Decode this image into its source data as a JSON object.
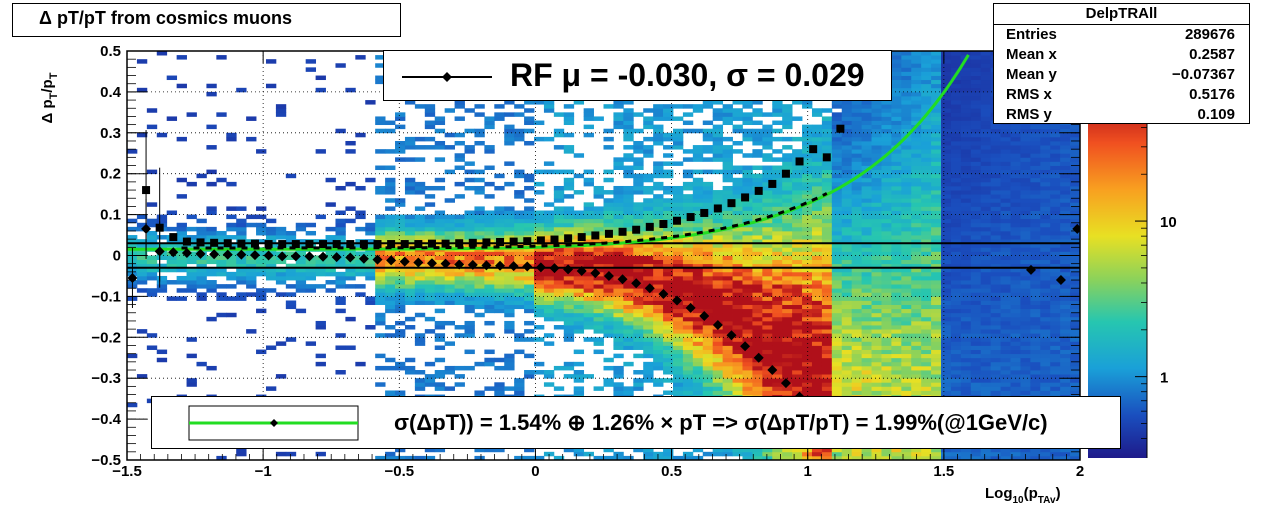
{
  "title": "Δ p_T/p_T from cosmics muons",
  "title_text": "Δ pT/pT from cosmics muons",
  "stats": {
    "name": "DelpTRAll",
    "rows": [
      {
        "label": "Entries",
        "value": "289676"
      },
      {
        "label": "Mean x",
        "value": "0.2587"
      },
      {
        "label": "Mean y",
        "value": "−0.07367"
      },
      {
        "label": "RMS x",
        "value": "0.5176"
      },
      {
        "label": "RMS y",
        "value": "0.109"
      }
    ]
  },
  "legend_top": {
    "text": "RF μ = -0.030, σ =   0.029"
  },
  "legend_bottom": {
    "text": "σ(ΔpT)) =  1.54% ⊕  1.26% × pT => σ(ΔpT/pT) =  1.99%(@1GeV/c)"
  },
  "colors": {
    "fit": "#22dd22",
    "markers": "#000000"
  },
  "chart_data": {
    "type": "heatmap",
    "xlabel": "Log10(pTAv)",
    "ylabel": "Δ pT/pT",
    "xlim": [
      -1.5,
      2.0
    ],
    "ylim": [
      -0.5,
      0.5
    ],
    "x_ticks": [
      "−1.5",
      "−1",
      "−0.5",
      "0",
      "0.5",
      "1",
      "1.5",
      "2"
    ],
    "x_tick_values": [
      -1.5,
      -1,
      -0.5,
      0,
      0.5,
      1,
      1.5,
      2
    ],
    "y_ticks": [
      "−0.5",
      "−0.4",
      "−0.3",
      "−0.2",
      "−0.1",
      "0",
      "0.1",
      "0.2",
      "0.3",
      "0.4",
      "0.5"
    ],
    "y_tick_values": [
      -0.5,
      -0.4,
      -0.3,
      -0.2,
      -0.1,
      0,
      0.1,
      0.2,
      0.3,
      0.4,
      0.5
    ],
    "z_scale": "log",
    "z_ticks": [
      "1",
      "10"
    ],
    "z_tick_values": [
      1,
      10
    ],
    "zlim": [
      0.3,
      60
    ],
    "grid": true,
    "hlines": [
      0.03,
      -0.03
    ],
    "mean_points": {
      "x": [
        -1.48,
        -1.43,
        -1.38,
        -1.33,
        -1.28,
        -1.23,
        -1.18,
        -1.13,
        -1.08,
        -1.03,
        -0.98,
        -0.93,
        -0.88,
        -0.83,
        -0.78,
        -0.73,
        -0.68,
        -0.63,
        -0.58,
        -0.53,
        -0.48,
        -0.43,
        -0.38,
        -0.33,
        -0.28,
        -0.23,
        -0.18,
        -0.13,
        -0.08,
        -0.03,
        0.02,
        0.07,
        0.12,
        0.17,
        0.22,
        0.27,
        0.32,
        0.37,
        0.42,
        0.47,
        0.52,
        0.57,
        0.62,
        0.67,
        0.72,
        0.77,
        0.82,
        0.87,
        0.92,
        0.97,
        1.02,
        1.07,
        1.82,
        1.93,
        1.99
      ],
      "y": [
        -0.055,
        0.065,
        0.01,
        0.008,
        0.006,
        0.004,
        0.003,
        0.002,
        0.002,
        0.001,
        0.0,
        -0.002,
        -0.002,
        -0.002,
        -0.003,
        -0.004,
        -0.005,
        -0.008,
        -0.01,
        -0.012,
        -0.015,
        -0.017,
        -0.019,
        -0.02,
        -0.022,
        -0.023,
        -0.024,
        -0.025,
        -0.026,
        -0.027,
        -0.029,
        -0.031,
        -0.034,
        -0.038,
        -0.043,
        -0.05,
        -0.058,
        -0.068,
        -0.08,
        -0.094,
        -0.11,
        -0.128,
        -0.148,
        -0.17,
        -0.195,
        -0.222,
        -0.25,
        -0.28,
        -0.312,
        -0.345,
        -0.38,
        -0.42,
        -0.035,
        -0.06,
        0.065
      ]
    },
    "sigma_points": {
      "x": [
        -1.43,
        -1.38,
        -1.33,
        -1.28,
        -1.23,
        -1.18,
        -1.13,
        -1.08,
        -1.03,
        -0.98,
        -0.93,
        -0.88,
        -0.83,
        -0.78,
        -0.73,
        -0.68,
        -0.63,
        -0.58,
        -0.53,
        -0.48,
        -0.43,
        -0.38,
        -0.33,
        -0.28,
        -0.23,
        -0.18,
        -0.13,
        -0.08,
        -0.03,
        0.02,
        0.07,
        0.12,
        0.17,
        0.22,
        0.27,
        0.32,
        0.37,
        0.42,
        0.47,
        0.52,
        0.57,
        0.62,
        0.67,
        0.72,
        0.77,
        0.82,
        0.87,
        0.92,
        0.97,
        1.02,
        1.07,
        1.12
      ],
      "y": [
        0.16,
        0.068,
        0.045,
        0.034,
        0.032,
        0.031,
        0.03,
        0.029,
        0.029,
        0.028,
        0.028,
        0.028,
        0.028,
        0.028,
        0.028,
        0.028,
        0.028,
        0.028,
        0.028,
        0.028,
        0.028,
        0.029,
        0.029,
        0.03,
        0.031,
        0.032,
        0.033,
        0.034,
        0.035,
        0.037,
        0.039,
        0.042,
        0.045,
        0.049,
        0.053,
        0.058,
        0.063,
        0.07,
        0.077,
        0.085,
        0.094,
        0.104,
        0.115,
        0.128,
        0.142,
        0.158,
        0.175,
        0.2,
        0.23,
        0.26,
        0.24,
        0.31
      ]
    },
    "fit_function": {
      "expression": "sqrt(0.0154^2 + (0.0126*10^x)^2)",
      "a": 0.0154,
      "b": 0.0126
    }
  }
}
